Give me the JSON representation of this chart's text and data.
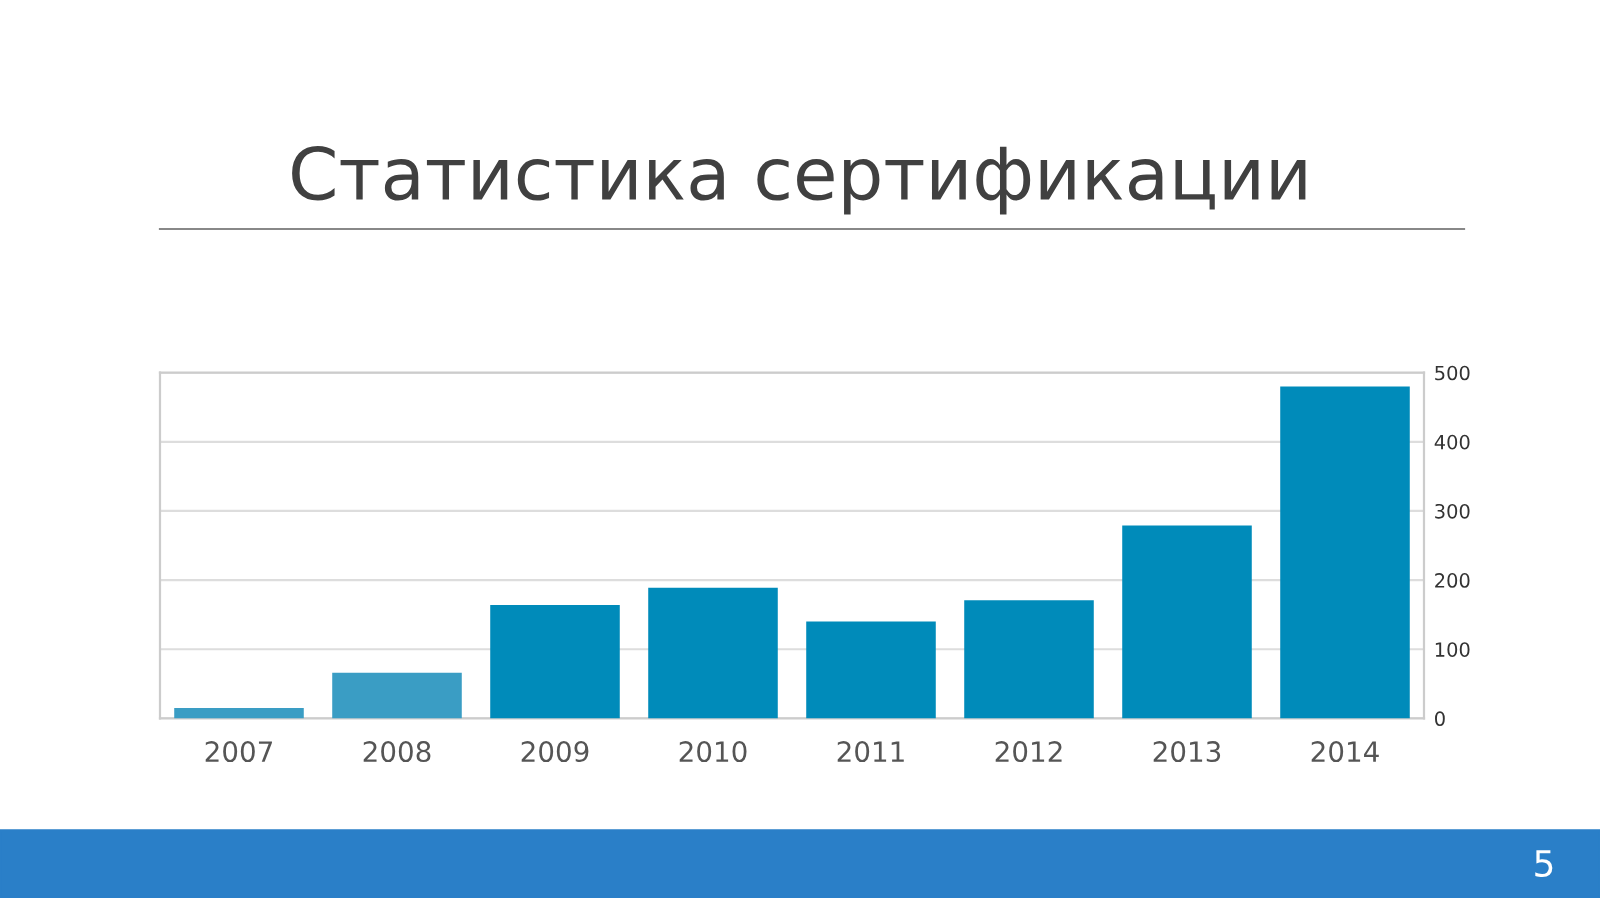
{
  "chart_data": {
    "type": "bar",
    "title": "Статистика сертификации",
    "categories": [
      "2007",
      "2008",
      "2009",
      "2010",
      "2011",
      "2012",
      "2013",
      "2014"
    ],
    "values": [
      15,
      66,
      164,
      189,
      140,
      171,
      279,
      480
    ],
    "colors": [
      "#3a9dc4",
      "#3a9dc4",
      "#008bba",
      "#008bba",
      "#008bba",
      "#008bba",
      "#008bba",
      "#008bba"
    ],
    "ylim": [
      0,
      500
    ],
    "yticks": [
      0,
      100,
      200,
      300,
      400,
      500
    ],
    "grid": "y",
    "annotations": [
      "5"
    ]
  }
}
